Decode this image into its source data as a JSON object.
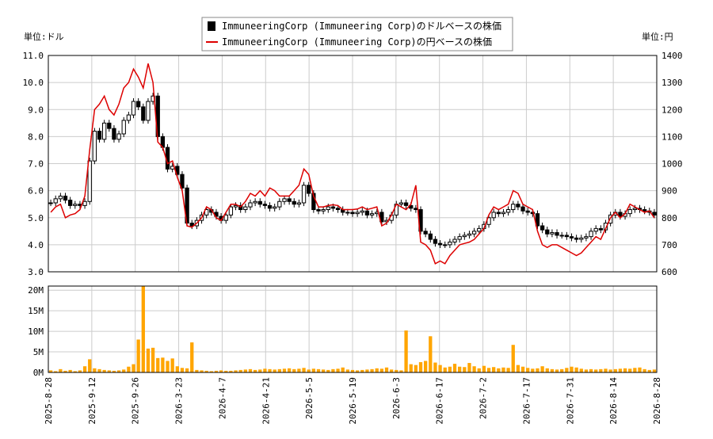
{
  "chart_data": {
    "type": "candlestick",
    "legend": {
      "usd_series": "ImmuneeringCorp (Immuneering Corp)のドルベースの株価",
      "jpy_series": "ImmuneeringCorp (Immuneering Corp)の円ベースの株価",
      "placement": "top-center"
    },
    "left_unit": "単位:ドル",
    "right_unit": "単位:円",
    "y_left_ticks": [
      "3.0",
      "4.0",
      "5.0",
      "6.0",
      "7.0",
      "8.0",
      "9.0",
      "10.0",
      "11.0"
    ],
    "y_left_range": [
      3.0,
      11.0
    ],
    "y_right_ticks": [
      "600",
      "700",
      "800",
      "900",
      "1000",
      "1100",
      "1200",
      "1300",
      "1400"
    ],
    "y_right_range": [
      600,
      1400
    ],
    "volume_ticks": [
      "0M",
      "5M",
      "10M",
      "15M",
      "20M"
    ],
    "volume_range": [
      0,
      21
    ],
    "x_tick_labels": [
      "2025-8-28",
      "2025-9-12",
      "2025-9-26",
      "2026-3-23",
      "2026-4-7",
      "2026-4-21",
      "2026-5-5",
      "2026-5-19",
      "2026-6-3",
      "2026-6-17",
      "2026-7-2",
      "2026-7-17",
      "2026-7-31",
      "2026-8-14",
      "2026-8-28"
    ],
    "grid": true,
    "colors": {
      "up_candle": "#ffffff",
      "down_candle": "#000000",
      "yen_line": "#dd0000",
      "volume_bar": "#ffa500",
      "grid": "#cccccc"
    },
    "close_usd": [
      5.55,
      5.7,
      5.8,
      5.65,
      5.45,
      5.5,
      5.45,
      5.6,
      7.1,
      8.2,
      7.9,
      8.5,
      8.3,
      7.9,
      8.1,
      8.6,
      8.8,
      9.3,
      9.1,
      8.6,
      9.3,
      9.5,
      8.0,
      7.6,
      6.8,
      6.9,
      6.6,
      6.1,
      4.8,
      4.7,
      4.9,
      5.1,
      5.3,
      5.2,
      5.05,
      4.9,
      5.1,
      5.4,
      5.45,
      5.3,
      5.4,
      5.55,
      5.6,
      5.5,
      5.45,
      5.35,
      5.4,
      5.6,
      5.7,
      5.6,
      5.5,
      5.55,
      6.2,
      5.9,
      5.3,
      5.25,
      5.3,
      5.4,
      5.35,
      5.3,
      5.2,
      5.2,
      5.15,
      5.2,
      5.25,
      5.1,
      5.15,
      5.2,
      4.85,
      4.9,
      5.1,
      5.5,
      5.55,
      5.45,
      5.35,
      5.3,
      4.5,
      4.4,
      4.2,
      4.05,
      4.0,
      4.0,
      4.1,
      4.2,
      4.3,
      4.35,
      4.4,
      4.5,
      4.6,
      4.75,
      5.0,
      5.2,
      5.15,
      5.2,
      5.3,
      5.5,
      5.4,
      5.25,
      5.2,
      5.15,
      4.7,
      4.55,
      4.4,
      4.45,
      4.35,
      4.35,
      4.3,
      4.25,
      4.2,
      4.25,
      4.3,
      4.5,
      4.6,
      4.55,
      4.8,
      5.1,
      5.2,
      5.05,
      5.15,
      5.3,
      5.35,
      5.3,
      5.25,
      5.2,
      5.1
    ],
    "close_jpy": [
      820,
      840,
      850,
      800,
      810,
      815,
      830,
      880,
      1050,
      1200,
      1220,
      1250,
      1200,
      1180,
      1220,
      1280,
      1300,
      1350,
      1320,
      1280,
      1370,
      1300,
      1080,
      1060,
      1000,
      1010,
      950,
      900,
      770,
      765,
      780,
      800,
      840,
      830,
      800,
      790,
      820,
      850,
      850,
      840,
      860,
      890,
      880,
      900,
      880,
      910,
      900,
      880,
      880,
      880,
      900,
      920,
      980,
      960,
      880,
      840,
      840,
      845,
      848,
      845,
      830,
      830,
      830,
      832,
      840,
      830,
      835,
      840,
      770,
      780,
      810,
      850,
      840,
      830,
      850,
      920,
      710,
      700,
      680,
      630,
      640,
      630,
      660,
      680,
      700,
      705,
      710,
      720,
      740,
      760,
      810,
      840,
      830,
      840,
      850,
      900,
      890,
      850,
      840,
      830,
      750,
      700,
      690,
      700,
      700,
      690,
      680,
      670,
      660,
      670,
      690,
      710,
      730,
      720,
      760,
      800,
      820,
      800,
      815,
      850,
      840,
      830,
      820,
      825,
      800
    ],
    "volume_m": [
      0.5,
      0.3,
      0.8,
      0.4,
      0.6,
      0.3,
      0.5,
      1.5,
      3.2,
      1.0,
      0.8,
      0.6,
      0.5,
      0.4,
      0.5,
      0.7,
      1.4,
      2.0,
      8.0,
      21.0,
      5.8,
      6.0,
      3.5,
      3.6,
      2.8,
      3.4,
      1.5,
      1.1,
      1.0,
      7.3,
      0.6,
      0.5,
      0.4,
      0.3,
      0.4,
      0.5,
      0.4,
      0.4,
      0.5,
      0.6,
      0.7,
      0.8,
      0.6,
      0.7,
      0.9,
      0.8,
      0.7,
      0.8,
      0.9,
      1.0,
      0.8,
      0.9,
      1.1,
      0.7,
      0.9,
      0.8,
      0.7,
      0.6,
      0.8,
      0.9,
      1.2,
      0.7,
      0.6,
      0.5,
      0.6,
      0.7,
      0.8,
      1.0,
      0.9,
      1.2,
      0.7,
      0.6,
      0.5,
      10.2,
      2.0,
      1.8,
      2.5,
      2.8,
      8.8,
      2.4,
      1.8,
      1.2,
      1.4,
      2.1,
      1.4,
      1.3,
      2.3,
      1.5,
      1.0,
      1.6,
      1.1,
      1.3,
      1.0,
      1.2,
      1.1,
      6.7,
      1.8,
      1.4,
      1.1,
      0.9,
      1.0,
      1.5,
      1.0,
      0.8,
      0.7,
      0.8,
      1.1,
      1.4,
      1.2,
      0.9,
      0.7,
      0.8,
      0.7,
      0.8,
      0.9,
      0.7,
      0.8,
      0.9,
      1.0,
      0.9,
      1.1,
      1.2,
      0.8,
      0.6,
      0.7
    ]
  }
}
